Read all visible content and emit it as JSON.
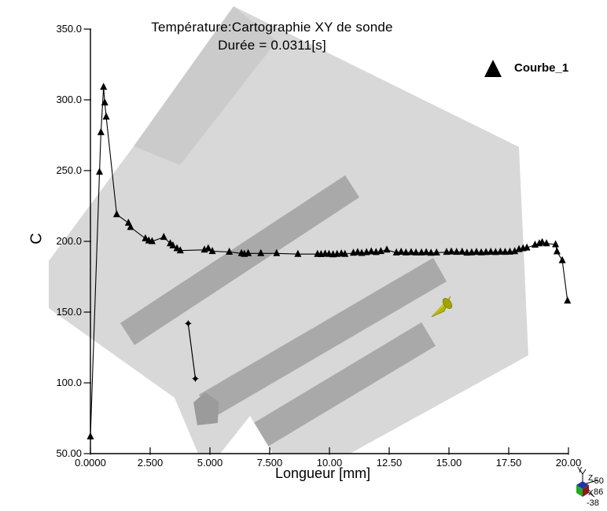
{
  "title": {
    "line1": "Température:Cartographie XY de sonde",
    "line2": "Durée =  0.0311[s]"
  },
  "legend": {
    "label": "Courbe_1",
    "marker": "triangle-icon",
    "marker_color": "#000000"
  },
  "axes": {
    "x": {
      "label": "Longueur [mm]",
      "range": [
        0,
        20
      ],
      "ticks": [
        {
          "v": 0.0,
          "label": "0.0000"
        },
        {
          "v": 2.5,
          "label": "2.500"
        },
        {
          "v": 5.0,
          "label": "5.000"
        },
        {
          "v": 7.5,
          "label": "7.500"
        },
        {
          "v": 10.0,
          "label": "10.00"
        },
        {
          "v": 12.5,
          "label": "12.50"
        },
        {
          "v": 15.0,
          "label": "15.00"
        },
        {
          "v": 17.5,
          "label": "17.50"
        },
        {
          "v": 20.0,
          "label": "20.00"
        }
      ]
    },
    "y": {
      "label": "C",
      "range": [
        50,
        350
      ],
      "ticks": [
        {
          "v": 50,
          "label": "50.00"
        },
        {
          "v": 100,
          "label": "100.0"
        },
        {
          "v": 150,
          "label": "150.0"
        },
        {
          "v": 200,
          "label": "200.0"
        },
        {
          "v": 250,
          "label": "250.0"
        },
        {
          "v": 300,
          "label": "300.0"
        },
        {
          "v": 350,
          "label": "350.0"
        }
      ]
    }
  },
  "chart_data": {
    "type": "line",
    "title": "Température:Cartographie XY de sonde",
    "subtitle": "Durée =  0.0311[s]",
    "xlabel": "Longueur [mm]",
    "ylabel": "C",
    "xlim": [
      0,
      20
    ],
    "ylim": [
      50,
      350
    ],
    "grid": false,
    "legend_position": "top-right",
    "series": [
      {
        "name": "Courbe_1",
        "color": "#000000",
        "marker": "triangle",
        "points": [
          [
            0.0,
            62
          ],
          [
            0.38,
            249
          ],
          [
            0.44,
            277
          ],
          [
            0.55,
            309
          ],
          [
            0.6,
            298
          ],
          [
            0.66,
            288
          ],
          [
            1.1,
            219
          ],
          [
            1.59,
            213
          ],
          [
            1.68,
            210
          ],
          [
            2.3,
            202
          ],
          [
            2.44,
            200.5
          ],
          [
            2.58,
            200
          ],
          [
            3.07,
            203
          ],
          [
            3.34,
            198.5
          ],
          [
            3.45,
            197
          ],
          [
            3.62,
            195
          ],
          [
            3.76,
            193.5
          ],
          [
            4.77,
            194
          ],
          [
            4.93,
            195
          ],
          [
            5.1,
            193
          ],
          [
            5.81,
            192.5
          ],
          [
            6.32,
            191.5
          ],
          [
            6.44,
            191
          ],
          [
            6.6,
            191.5
          ],
          [
            7.13,
            191.5
          ],
          [
            7.79,
            191.5
          ],
          [
            8.68,
            191
          ],
          [
            9.5,
            191
          ],
          [
            9.65,
            190.8
          ],
          [
            9.82,
            191.2
          ],
          [
            9.98,
            191
          ],
          [
            10.15,
            190.7
          ],
          [
            10.32,
            191
          ],
          [
            10.5,
            191.3
          ],
          [
            10.65,
            191
          ],
          [
            11.0,
            191.8
          ],
          [
            11.18,
            192.3
          ],
          [
            11.35,
            191.7
          ],
          [
            11.55,
            192.2
          ],
          [
            11.75,
            192.8
          ],
          [
            11.95,
            192.3
          ],
          [
            12.15,
            193
          ],
          [
            12.4,
            194
          ],
          [
            12.8,
            192
          ],
          [
            13.0,
            192.5
          ],
          [
            13.2,
            192
          ],
          [
            13.42,
            192.3
          ],
          [
            13.62,
            192
          ],
          [
            13.85,
            192
          ],
          [
            14.05,
            192.2
          ],
          [
            14.25,
            191.8
          ],
          [
            14.48,
            192
          ],
          [
            14.9,
            192.4
          ],
          [
            15.1,
            192.7
          ],
          [
            15.32,
            192.4
          ],
          [
            15.55,
            192.6
          ],
          [
            15.75,
            191.9
          ],
          [
            15.95,
            192.1
          ],
          [
            16.15,
            192.4
          ],
          [
            16.35,
            192.1
          ],
          [
            16.55,
            192.3
          ],
          [
            16.75,
            192.5
          ],
          [
            16.95,
            192.3
          ],
          [
            17.15,
            192.6
          ],
          [
            17.35,
            192.4
          ],
          [
            17.55,
            192.6
          ],
          [
            17.75,
            192.9
          ],
          [
            17.93,
            194.4
          ],
          [
            18.1,
            195.0
          ],
          [
            18.26,
            195.5
          ],
          [
            18.6,
            197.5
          ],
          [
            18.78,
            198.5
          ],
          [
            18.9,
            199.3
          ],
          [
            19.08,
            198.5
          ],
          [
            19.46,
            197.8
          ],
          [
            19.52,
            192.8
          ],
          [
            19.74,
            186.5
          ],
          [
            19.96,
            158
          ]
        ]
      }
    ],
    "annotations": {
      "probe_segment_points": [
        [
          4.09,
          142
        ],
        [
          4.39,
          103
        ]
      ]
    }
  },
  "scene": {
    "part_color": "#d8d8d8",
    "part_shade_color": "#cbcbcb",
    "channel_color": "#a9a9a9",
    "channel_cap_color": "#9b9b9b",
    "probe_cone_color": "#b5b500",
    "probe_cone_highlight": "#d6d600"
  },
  "triad": {
    "y_label": "Y",
    "z_label": "Z",
    "x_label": "X",
    "values": [
      "-50",
      "86",
      "-38"
    ],
    "cube_top_color": "#2233aa",
    "cube_right_color": "#8b1a1a",
    "cube_front_color": "#22aa22"
  }
}
